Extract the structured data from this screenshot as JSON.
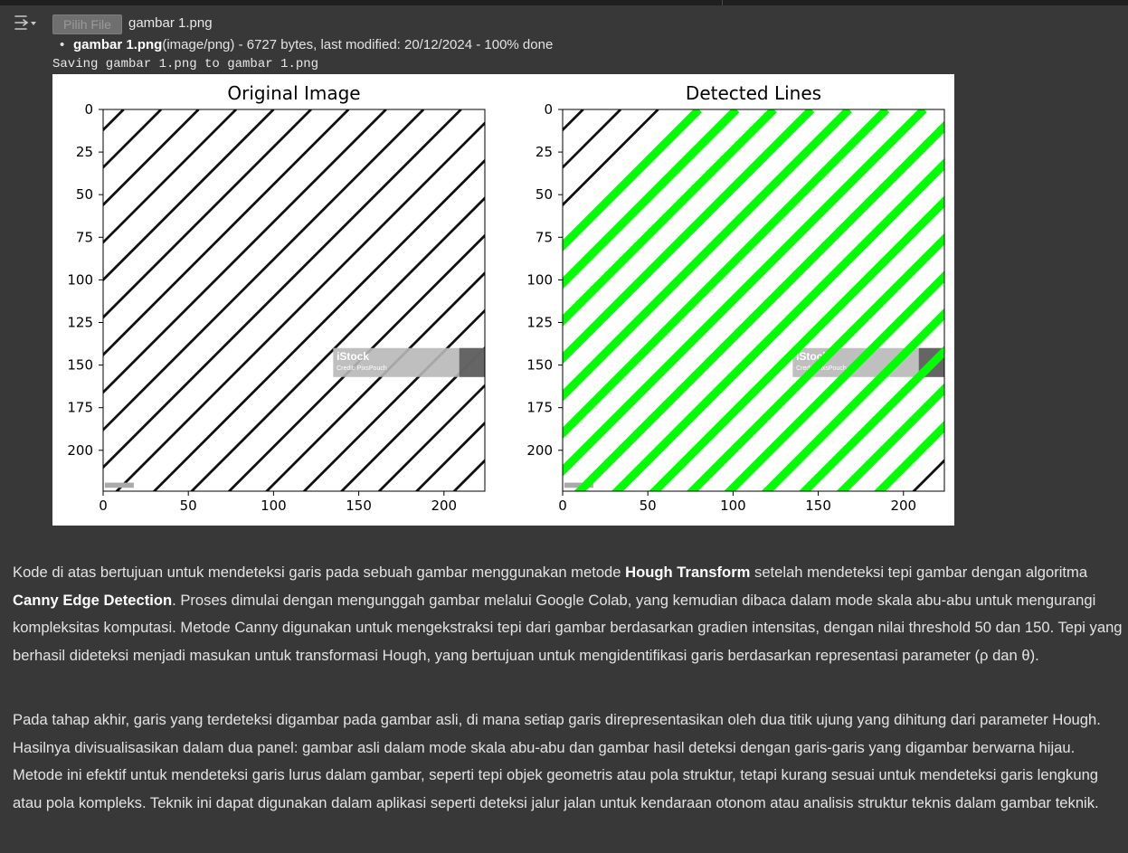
{
  "upload": {
    "button_label": "Pilih File",
    "selected_file": "gambar 1.png",
    "file_info": {
      "name": "gambar 1.png",
      "details": "(image/png) - 6727 bytes, last modified: 20/12/2024 - 100% done"
    },
    "saving_message": "Saving gambar 1.png to gambar 1.png"
  },
  "chart_data": [
    {
      "type": "image",
      "title": "Original Image",
      "xlim": [
        0,
        224
      ],
      "ylim": [
        224,
        0
      ],
      "xticks": [
        "0",
        "50",
        "100",
        "150",
        "200"
      ],
      "yticks": [
        "0",
        "25",
        "50",
        "75",
        "100",
        "125",
        "150",
        "175",
        "200"
      ],
      "watermark": {
        "text": "iStock",
        "credit": "Credit: PixsPouch"
      }
    },
    {
      "type": "image",
      "title": "Detected Lines",
      "xlim": [
        0,
        224
      ],
      "ylim": [
        224,
        0
      ],
      "xticks": [
        "0",
        "50",
        "100",
        "150",
        "200"
      ],
      "yticks": [
        "0",
        "25",
        "50",
        "75",
        "100",
        "125",
        "150",
        "175",
        "200"
      ],
      "overlay_color": "#00ff00",
      "watermark": {
        "text": "iStock",
        "credit": "Credit: PixsPouch"
      }
    }
  ],
  "explanation": {
    "p1": [
      "Kode di atas bertujuan untuk mendeteksi garis pada sebuah gambar menggunakan metode ",
      "Hough Transform",
      " setelah mendeteksi tepi gambar dengan algoritma ",
      "Canny Edge Detection",
      ". Proses dimulai dengan mengunggah gambar melalui Google Colab, yang kemudian dibaca dalam mode skala abu-abu untuk mengurangi kompleksitas komputasi. Metode Canny digunakan untuk mengekstraksi tepi dari gambar berdasarkan gradien intensitas, dengan nilai threshold 50 dan 150. Tepi yang berhasil dideteksi menjadi masukan untuk transformasi Hough, yang bertujuan untuk mengidentifikasi garis berdasarkan representasi parameter (ρ dan θ)."
    ],
    "p2": "Pada tahap akhir, garis yang terdeteksi digambar pada gambar asli, di mana setiap garis direpresentasikan oleh dua titik ujung yang dihitung dari parameter Hough. Hasilnya divisualisasikan dalam dua panel: gambar asli dalam mode skala abu-abu dan gambar hasil deteksi dengan garis-garis yang digambar berwarna hijau. Metode ini efektif untuk mendeteksi garis lurus dalam gambar, seperti tepi objek geometris atau pola struktur, tetapi kurang sesuai untuk mendeteksi garis lengkung atau pola kompleks. Teknik ini dapat digunakan dalam aplikasi seperti deteksi jalur jalan untuk kendaraan otonom atau analisis struktur teknis dalam gambar teknik."
  }
}
